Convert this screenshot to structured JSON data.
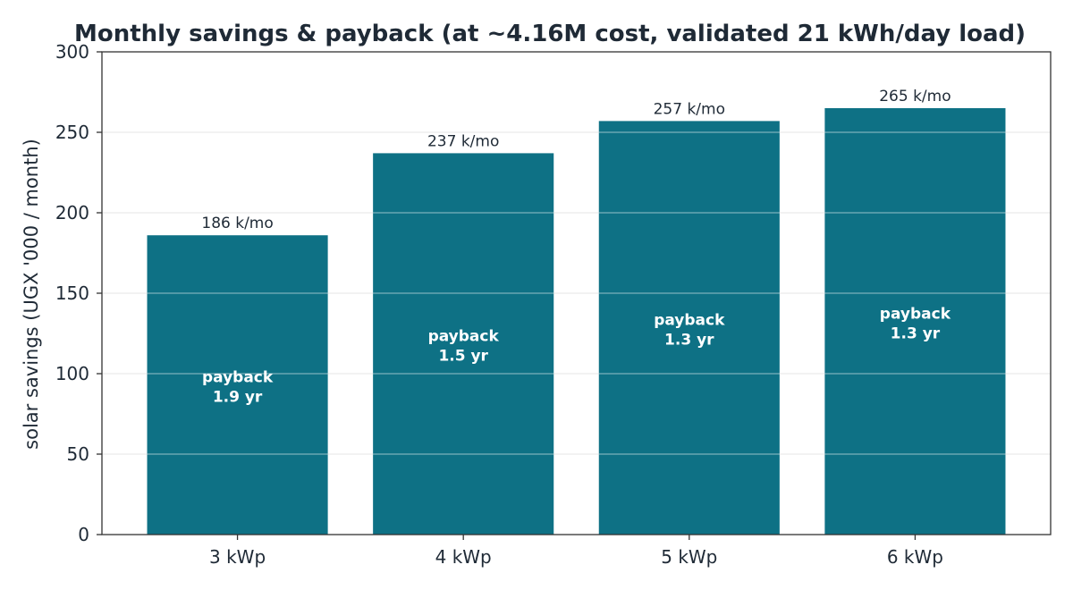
{
  "chart_data": {
    "type": "bar",
    "title": "Monthly savings & payback (at ~4.16M cost, validated 21 kWh/day load)",
    "xlabel": "",
    "ylabel": "solar savings (UGX '000 / month)",
    "ylim": [
      0,
      300
    ],
    "yticks": [
      0,
      50,
      100,
      150,
      200,
      250,
      300
    ],
    "grid": "horizontal",
    "categories": [
      "3 kWp",
      "4 kWp",
      "5 kWp",
      "6 kWp"
    ],
    "values": [
      186,
      237,
      257,
      265
    ],
    "value_labels": [
      "186 k/mo",
      "237 k/mo",
      "257 k/mo",
      "265 k/mo"
    ],
    "payback_labels": [
      {
        "line1": "payback",
        "line2": "1.9 yr"
      },
      {
        "line1": "payback",
        "line2": "1.5 yr"
      },
      {
        "line1": "payback",
        "line2": "1.3 yr"
      },
      {
        "line1": "payback",
        "line2": "1.3 yr"
      }
    ],
    "colors": {
      "bar": "#0e7185",
      "grid": "#dddddd",
      "axis": "#333333",
      "text": "#1f2a36"
    }
  }
}
